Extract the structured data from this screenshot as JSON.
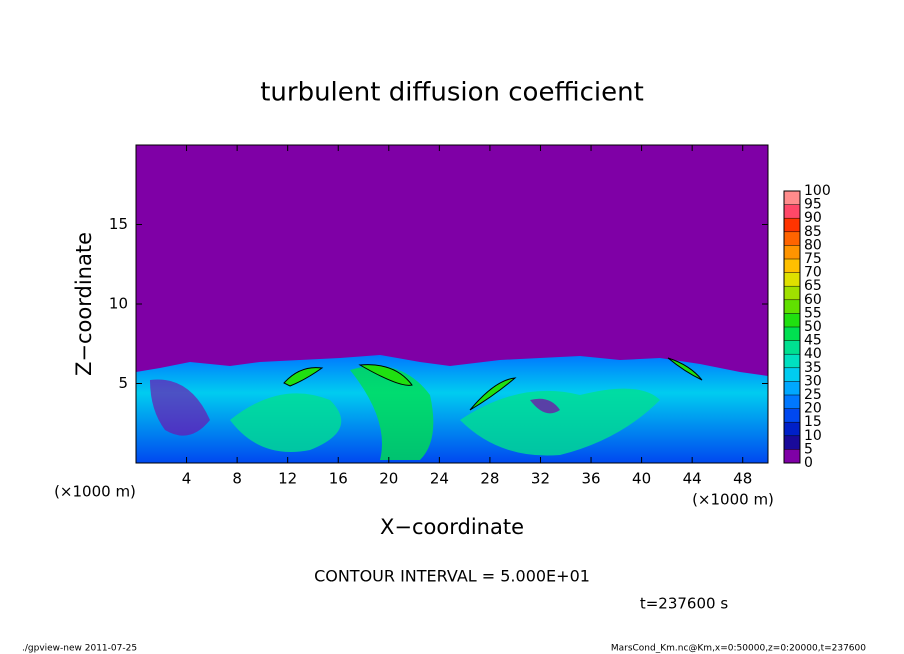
{
  "chart_data": {
    "type": "heatmap",
    "title": "turbulent diffusion coefficient",
    "xlabel": "X−coordinate",
    "ylabel": "Z−coordinate",
    "x_unit_left": "(×1000 m)",
    "x_unit_right": "(×1000 m)",
    "xlim": [
      0,
      50
    ],
    "xticks": [
      4,
      8,
      12,
      16,
      20,
      24,
      28,
      32,
      36,
      40,
      44,
      48
    ],
    "ylim": [
      0,
      20
    ],
    "yticks": [
      5,
      10,
      15
    ],
    "colorbar": {
      "ticks": [
        0,
        5,
        10,
        15,
        20,
        25,
        30,
        35,
        40,
        45,
        50,
        55,
        60,
        65,
        70,
        75,
        80,
        85,
        90,
        95,
        100
      ],
      "colors": [
        "#7f00a6",
        "#1a0a9a",
        "#0020c8",
        "#0048f0",
        "#0078ff",
        "#00a8ff",
        "#00ccf0",
        "#00e0c0",
        "#00e090",
        "#00e050",
        "#20e010",
        "#60e000",
        "#a0e000",
        "#dfe000",
        "#ffc000",
        "#ff9400",
        "#ff6400",
        "#ff3400",
        "#ff4868",
        "#ff8c8c"
      ]
    },
    "contour_note": "CONTOUR INTERVAL = 5.000E+01",
    "time_note": "t=237600 s",
    "footer_left": "./gpview-new  2011-07-25",
    "footer_right": "MarsCond_Km.nc@Km,x=0:50000,z=0:20000,t=237600"
  }
}
